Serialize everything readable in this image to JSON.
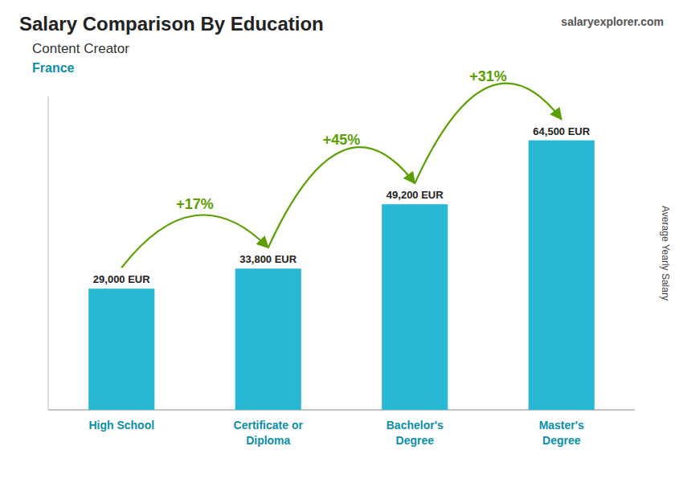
{
  "chart_data": {
    "type": "bar",
    "title": "Salary Comparison By Education",
    "subtitle": "Content Creator",
    "country": "France",
    "source": "salaryexplorer.com",
    "ylabel": "Average Yearly Salary",
    "categories": [
      "High School",
      "Certificate or\nDiploma",
      "Bachelor's\nDegree",
      "Master's\nDegree"
    ],
    "values": [
      29000,
      33800,
      49200,
      64500
    ],
    "value_labels": [
      "29,000 EUR",
      "33,800 EUR",
      "49,200 EUR",
      "64,500 EUR"
    ],
    "data_labels": true,
    "color": "#29B8D4",
    "ylim": [
      0,
      75000
    ],
    "tick_labels": "x",
    "grid": false,
    "annotations": [
      {
        "text": "+17%",
        "from": 0,
        "to": 1
      },
      {
        "text": "+45%",
        "from": 1,
        "to": 2
      },
      {
        "text": "+31%",
        "from": 2,
        "to": 3
      }
    ]
  }
}
